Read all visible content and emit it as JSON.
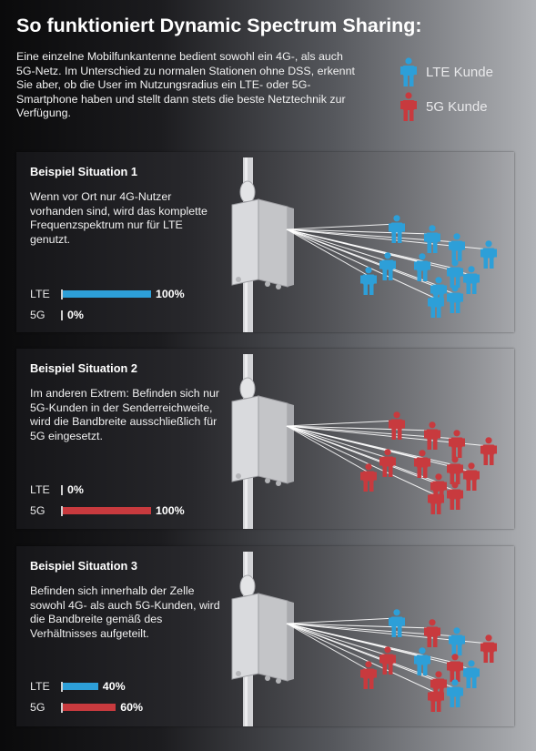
{
  "title": "So funktioniert Dynamic Spectrum Sharing:",
  "intro": "Eine einzelne Mobilfunkantenne bedient sowohl ein 4G-, als auch 5G-Netz. Im Unterschied zu normalen Stationen ohne DSS, erkennt Sie aber, ob die User im Nutzungsradius ein LTE- oder 5G-Smartphone haben und stellt dann stets die beste Netztechnik zur Verfügung.",
  "legend": [
    {
      "label": "LTE Kunde",
      "color": "#2d9fd8",
      "icon": "person-icon"
    },
    {
      "label": "5G Kunde",
      "color": "#c83a3e",
      "icon": "person-icon"
    }
  ],
  "colors": {
    "lte": "#2d9fd8",
    "g5": "#c83a3e"
  },
  "situations": [
    {
      "title": "Beispiel Situation 1",
      "text": "Wenn vor Ort nur 4G-Nutzer vorhanden sind, wird das komplette Frequenzspektrum nur für LTE genutzt.",
      "bars": [
        {
          "label": "LTE",
          "value": 100,
          "value_text": "100%",
          "type": "lte"
        },
        {
          "label": "5G",
          "value": 0,
          "value_text": "0%",
          "type": "g5"
        }
      ],
      "people": [
        "lte",
        "lte",
        "lte",
        "lte",
        "lte",
        "lte",
        "lte",
        "lte",
        "lte",
        "lte",
        "lte",
        "lte"
      ]
    },
    {
      "title": "Beispiel Situation 2",
      "text": "Im anderen Extrem: Befinden sich nur 5G-Kunden in der Senderreichweite, wird die Bandbreite ausschließlich für 5G eingesetzt.",
      "bars": [
        {
          "label": "LTE",
          "value": 0,
          "value_text": "0%",
          "type": "lte"
        },
        {
          "label": "5G",
          "value": 100,
          "value_text": "100%",
          "type": "g5"
        }
      ],
      "people": [
        "g5",
        "g5",
        "g5",
        "g5",
        "g5",
        "g5",
        "g5",
        "g5",
        "g5",
        "g5",
        "g5",
        "g5"
      ]
    },
    {
      "title": "Beispiel Situation 3",
      "text": "Befinden sich innerhalb der Zelle sowohl 4G- als auch 5G-Kunden, wird die Bandbreite gemäß des Verhältnisses aufgeteilt.",
      "bars": [
        {
          "label": "LTE",
          "value": 40,
          "value_text": "40%",
          "type": "lte"
        },
        {
          "label": "5G",
          "value": 60,
          "value_text": "60%",
          "type": "g5"
        }
      ],
      "people": [
        "lte",
        "g5",
        "lte",
        "g5",
        "g5",
        "lte",
        "g5",
        "lte",
        "g5",
        "g5",
        "lte",
        "g5"
      ]
    }
  ]
}
